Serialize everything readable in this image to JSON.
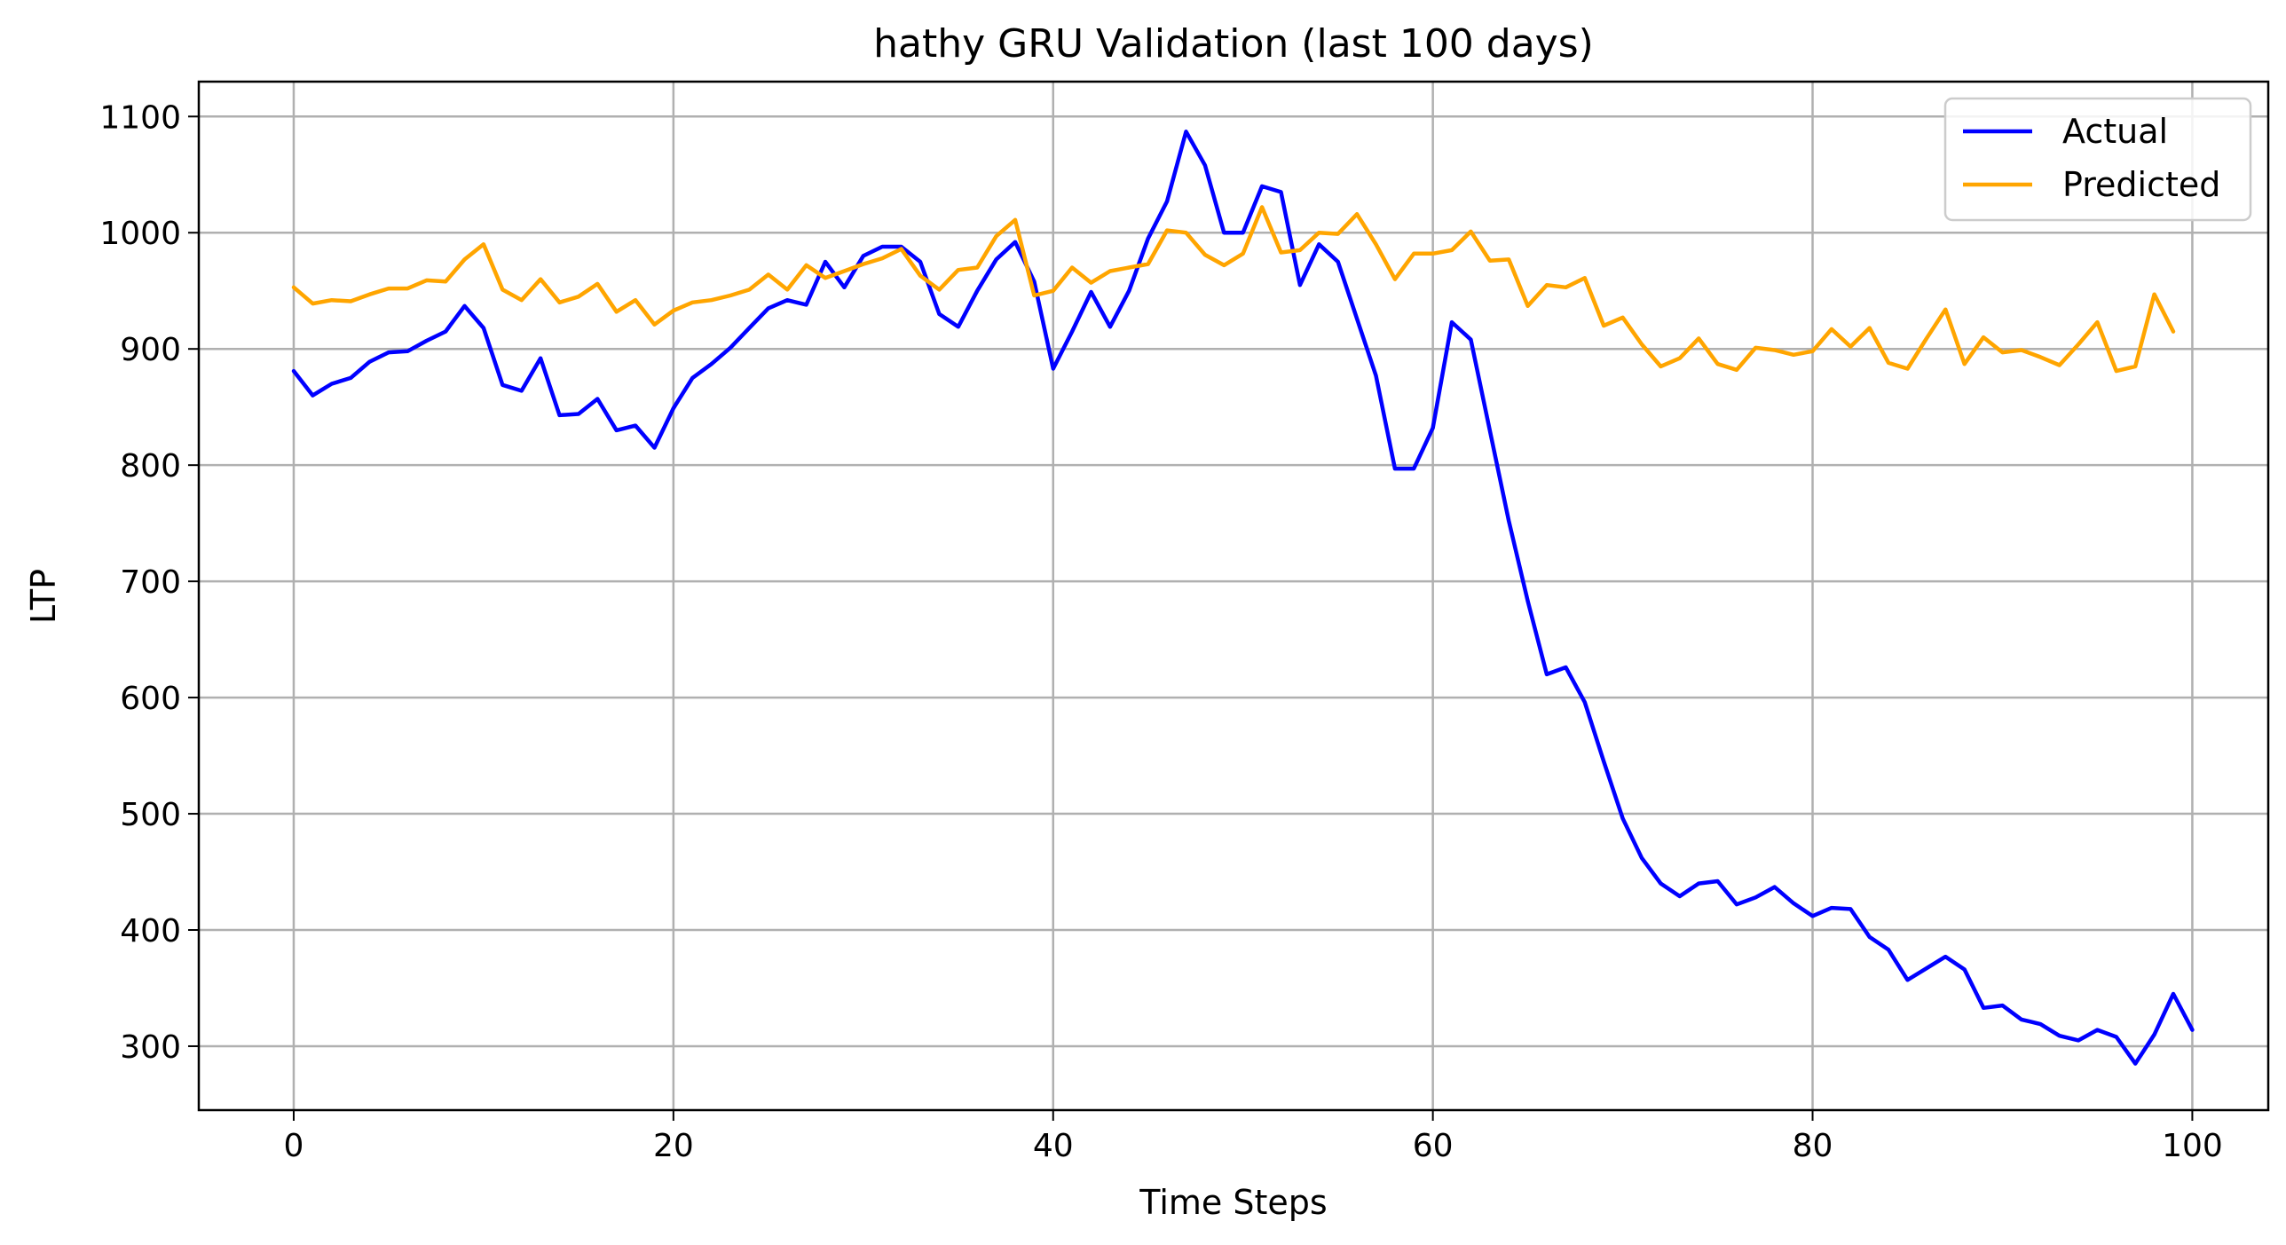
{
  "chart_data": {
    "type": "line",
    "title": "hathy GRU Validation (last 100 days)",
    "xlabel": "Time Steps",
    "ylabel": "LTP",
    "xlim": [
      -5,
      104
    ],
    "ylim": [
      245,
      1130
    ],
    "xticks": [
      0,
      20,
      40,
      60,
      80,
      100
    ],
    "yticks": [
      300,
      400,
      500,
      600,
      700,
      800,
      900,
      1000,
      1100
    ],
    "grid": true,
    "legend_position": "top-right",
    "series": [
      {
        "name": "Actual",
        "color": "#0000ff",
        "values": [
          881,
          860,
          870,
          875,
          889,
          897,
          898,
          907,
          915,
          937,
          918,
          869,
          864,
          892,
          843,
          844,
          857,
          830,
          834,
          815,
          849,
          875,
          887,
          901,
          918,
          935,
          942,
          938,
          975,
          953,
          980,
          988,
          988,
          975,
          930,
          919,
          950,
          977,
          992,
          958,
          883,
          915,
          949,
          919,
          950,
          995,
          1027,
          1087,
          1058,
          1000,
          1000,
          1040,
          1035,
          955,
          990,
          975,
          926,
          877,
          797,
          797,
          832,
          923,
          908,
          830,
          752,
          683,
          620,
          626,
          596,
          545,
          496,
          462,
          440,
          429,
          440,
          442,
          422,
          428,
          437,
          423,
          412,
          419,
          418,
          394,
          383,
          357,
          367,
          377,
          366,
          333,
          335,
          323,
          319,
          309,
          305,
          314,
          308,
          285,
          310,
          345,
          314
        ]
      },
      {
        "name": "Predicted",
        "color": "#ffa500",
        "values": [
          953,
          939,
          942,
          941,
          947,
          952,
          952,
          959,
          958,
          977,
          990,
          951,
          942,
          960,
          940,
          945,
          956,
          932,
          942,
          921,
          933,
          940,
          942,
          946,
          951,
          964,
          951,
          972,
          961,
          967,
          973,
          978,
          986,
          963,
          951,
          968,
          970,
          997,
          1011,
          946,
          950,
          970,
          957,
          967,
          970,
          973,
          1002,
          1000,
          981,
          972,
          982,
          1022,
          983,
          985,
          1000,
          999,
          1016,
          990,
          960,
          982,
          982,
          985,
          1001,
          976,
          977,
          937,
          955,
          953,
          961,
          920,
          927,
          904,
          885,
          892,
          909,
          887,
          882,
          901,
          899,
          895,
          898,
          917,
          902,
          918,
          888,
          883,
          909,
          934,
          887,
          910,
          897,
          899,
          893,
          886,
          904,
          923,
          881,
          885,
          947,
          915
        ]
      }
    ]
  }
}
